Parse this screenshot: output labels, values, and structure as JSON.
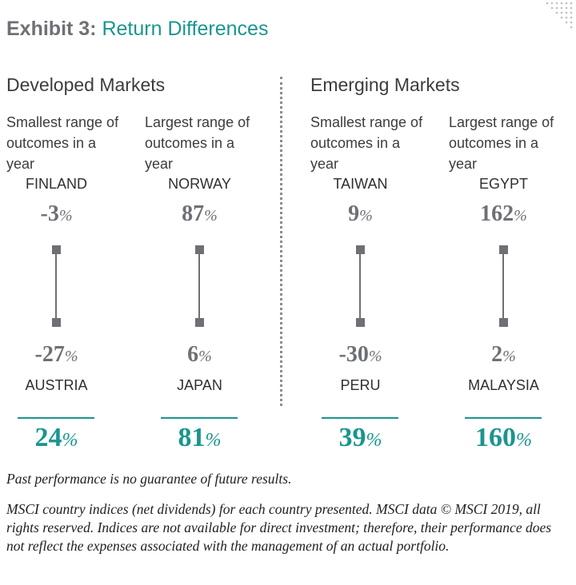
{
  "exhibit": {
    "label": "Exhibit 3:",
    "title": "Return Differences"
  },
  "chart_data": {
    "type": "range",
    "units": "%",
    "panels": [
      {
        "title": "Developed Markets",
        "columns": [
          {
            "header": "Smallest range of outcomes in a year",
            "high": {
              "country": "FINLAND",
              "value": -3
            },
            "low": {
              "country": "AUSTRIA",
              "value": -27
            },
            "difference": 24
          },
          {
            "header": "Largest range of outcomes in a year",
            "high": {
              "country": "NORWAY",
              "value": 87
            },
            "low": {
              "country": "JAPAN",
              "value": 6
            },
            "difference": 81
          }
        ]
      },
      {
        "title": "Emerging Markets",
        "columns": [
          {
            "header": "Smallest range of outcomes in a year",
            "high": {
              "country": "TAIWAN",
              "value": 9
            },
            "low": {
              "country": "PERU",
              "value": -30
            },
            "difference": 39
          },
          {
            "header": "Largest range of outcomes in a year",
            "high": {
              "country": "EGYPT",
              "value": 162
            },
            "low": {
              "country": "MALAYSIA",
              "value": 2
            },
            "difference": 160
          }
        ]
      }
    ]
  },
  "footnotes": {
    "disclaimer": "Past performance is no guarantee of future results.",
    "source": "MSCI country indices (net dividends) for each country presented. MSCI data © MSCI 2019, all rights reserved. Indices are not available for direct investment; therefore, their performance does not reflect the expenses associated with the management of an actual portfolio."
  },
  "colors": {
    "accent": "#1a958f",
    "gray": "#6e7075",
    "text": "#3c3c3c"
  }
}
